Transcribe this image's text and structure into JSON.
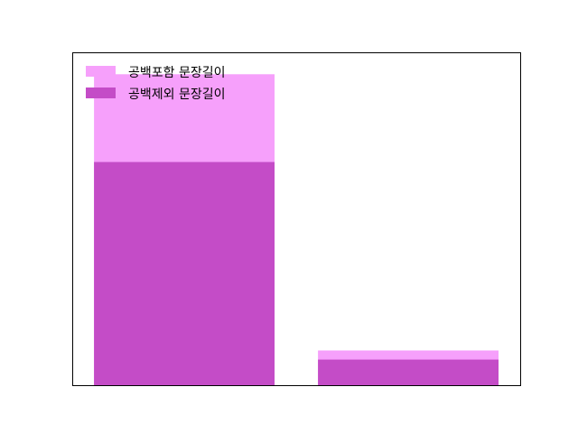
{
  "chart_data": {
    "type": "bar",
    "stacked": false,
    "overlapping": true,
    "categories": [
      "",
      ""
    ],
    "series": [
      {
        "name": "공백포함 문장길이",
        "color": "#f6a0fb",
        "values": [
          170,
          19
        ]
      },
      {
        "name": "공백제외 문장길이",
        "color": "#c44cc7",
        "values": [
          122,
          14
        ]
      }
    ],
    "ylim": [
      0,
      182
    ],
    "xaxis_ticks_visible": false,
    "yaxis_ticks_visible": false,
    "grid": false,
    "legend": "top-left",
    "title": "",
    "xlabel": "",
    "ylabel": ""
  }
}
